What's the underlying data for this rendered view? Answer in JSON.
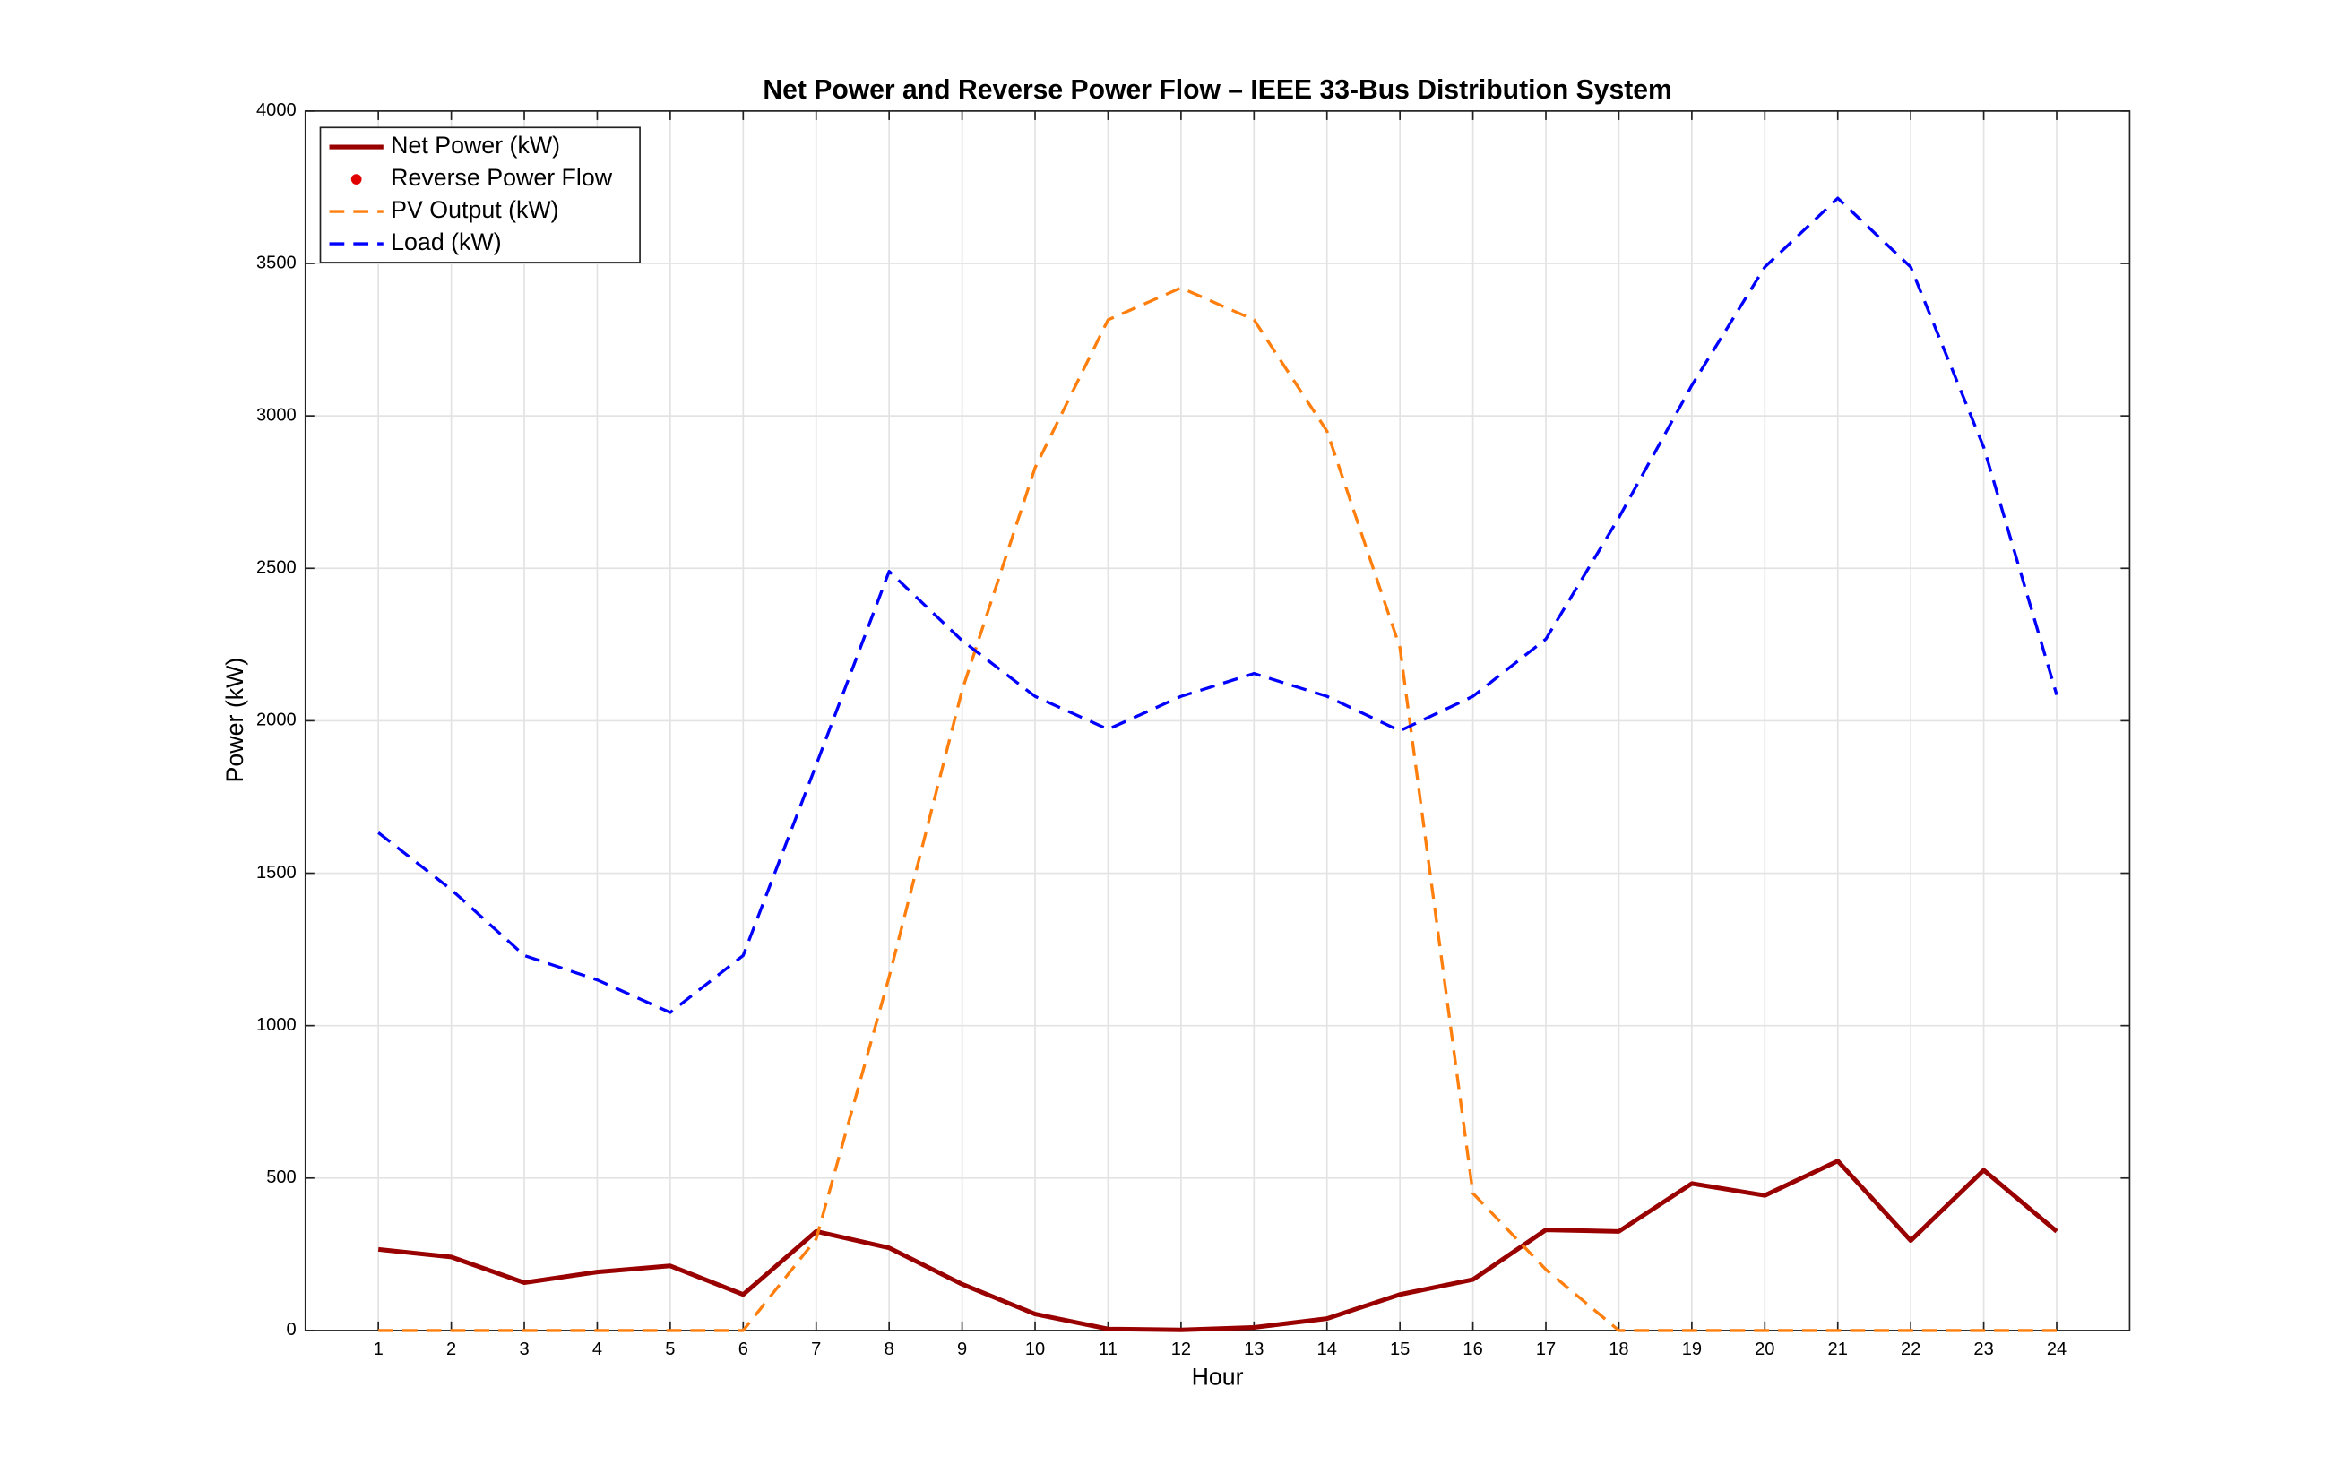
{
  "chart_data": {
    "type": "line",
    "title": "Net Power and Reverse Power Flow – IEEE 33-Bus Distribution System",
    "x_label": "Hour",
    "y_label": "Power (kW)",
    "x": [
      1,
      2,
      3,
      4,
      5,
      6,
      7,
      8,
      9,
      10,
      11,
      12,
      13,
      14,
      15,
      16,
      17,
      18,
      19,
      20,
      21,
      22,
      23,
      24
    ],
    "series": [
      {
        "name": "Net Power (kW)",
        "color": "#990000",
        "style": "solid",
        "values": [
          266,
          241,
          157,
          192,
          212,
          118,
          325,
          271,
          152,
          54,
          5,
          2,
          10,
          39,
          118,
          167,
          330,
          325,
          482,
          443,
          556,
          295,
          526,
          325
        ]
      },
      {
        "name": "Reverse Power Flow",
        "color": "#e00000",
        "style": "marker",
        "values": [
          null,
          null,
          null,
          null,
          null,
          null,
          null,
          null,
          null,
          null,
          null,
          null,
          null,
          null,
          null,
          null,
          null,
          null,
          null,
          null,
          null,
          null,
          null,
          null
        ]
      },
      {
        "name": "PV Output (kW)",
        "color": "#ff7f0e",
        "style": "dashed",
        "values": [
          0,
          0,
          0,
          0,
          0,
          0,
          300,
          1160,
          2100,
          2830,
          3315,
          3420,
          3315,
          2950,
          2240,
          450,
          200,
          0,
          0,
          0,
          0,
          0,
          0,
          0
        ]
      },
      {
        "name": "Load (kW)",
        "color": "#0000ff",
        "style": "dashed",
        "values": [
          1633,
          1446,
          1230,
          1150,
          1043,
          1230,
          1855,
          2490,
          2263,
          2080,
          1972,
          2080,
          2155,
          2080,
          1967,
          2080,
          2268,
          2666,
          3100,
          3488,
          3714,
          3488,
          2897,
          2085
        ]
      }
    ],
    "xlim": [
      0,
      25
    ],
    "xticks": [
      1,
      2,
      3,
      4,
      5,
      6,
      7,
      8,
      9,
      10,
      11,
      12,
      13,
      14,
      15,
      16,
      17,
      18,
      19,
      20,
      21,
      22,
      23,
      24
    ],
    "ylim": [
      0,
      4000
    ],
    "yticks": [
      0,
      500,
      1000,
      1500,
      2000,
      2500,
      3000,
      3500,
      4000
    ],
    "grid": true,
    "legend": "top-left"
  }
}
